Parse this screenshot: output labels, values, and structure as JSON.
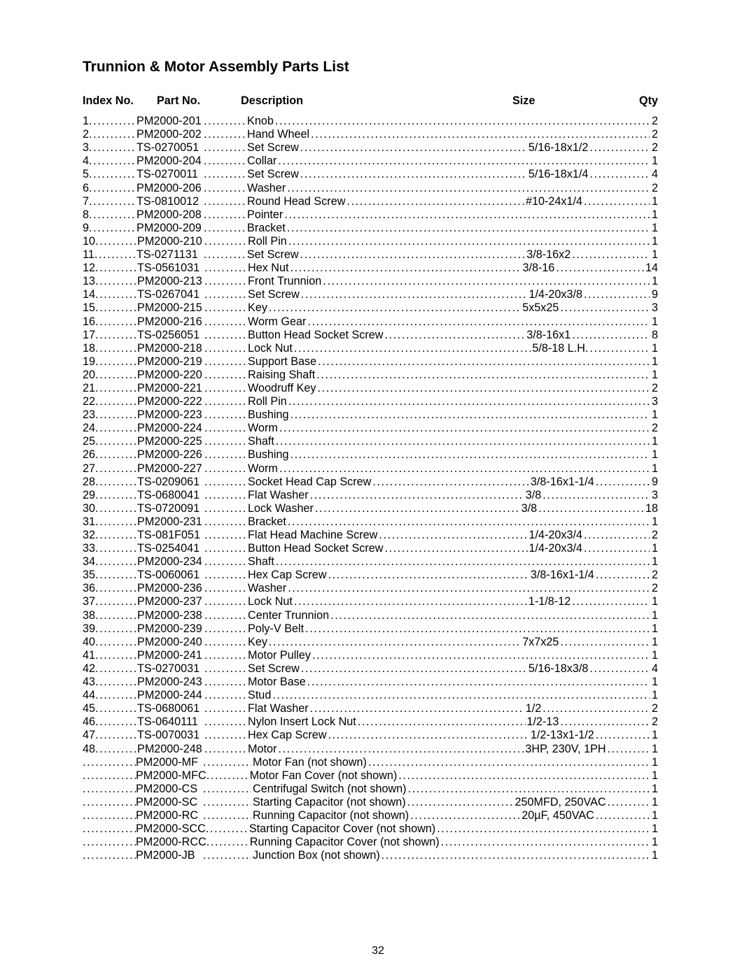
{
  "page_number": "32",
  "title": "Trunnion & Motor Assembly Parts List",
  "headers": {
    "index": "Index No.",
    "part": "Part No.",
    "description": "Description",
    "size": "Size",
    "qty": "Qty"
  },
  "rows": [
    {
      "idx": "1",
      "part": "PM2000-201",
      "desc": "Knob",
      "size": "",
      "qty": "2"
    },
    {
      "idx": "2",
      "part": "PM2000-202",
      "desc": "Hand Wheel",
      "size": "",
      "qty": "2"
    },
    {
      "idx": "3",
      "part": "TS-0270051",
      "desc": "Set Screw",
      "size": "5/16-18x1/2",
      "qty": "2"
    },
    {
      "idx": "4",
      "part": "PM2000-204",
      "desc": "Collar",
      "size": "",
      "qty": "1"
    },
    {
      "idx": "5",
      "part": "TS-0270011",
      "desc": "Set Screw",
      "size": "5/16-18x1/4",
      "qty": "4"
    },
    {
      "idx": "6",
      "part": "PM2000-206",
      "desc": "Washer",
      "size": "",
      "qty": "2"
    },
    {
      "idx": "7",
      "part": "TS-0810012",
      "desc": "Round Head Screw",
      "size": "#10-24x1/4",
      "qty": "1"
    },
    {
      "idx": "8",
      "part": "PM2000-208",
      "desc": "Pointer",
      "size": "",
      "qty": "1"
    },
    {
      "idx": "9",
      "part": "PM2000-209",
      "desc": "Bracket",
      "size": "",
      "qty": "1"
    },
    {
      "idx": "10",
      "part": "PM2000-210",
      "desc": "Roll Pin",
      "size": "",
      "qty": "1"
    },
    {
      "idx": "11",
      "part": "TS-0271131",
      "desc": "Set Screw",
      "size": "3/8-16x2",
      "qty": "1"
    },
    {
      "idx": "12",
      "part": "TS-0561031",
      "desc": "Hex Nut",
      "size": "3/8-16",
      "qty": "14"
    },
    {
      "idx": "13",
      "part": "PM2000-213",
      "desc": "Front Trunnion",
      "size": "",
      "qty": "1"
    },
    {
      "idx": "14",
      "part": "TS-0267041",
      "desc": "Set Screw",
      "size": "1/4-20x3/8",
      "qty": "9"
    },
    {
      "idx": "15",
      "part": "PM2000-215",
      "desc": "Key",
      "size": "5x5x25",
      "qty": "3"
    },
    {
      "idx": "16",
      "part": "PM2000-216",
      "desc": "Worm Gear",
      "size": "",
      "qty": "1"
    },
    {
      "idx": "17",
      "part": "TS-0256051",
      "desc": "Button Head Socket Screw",
      "size": "3/8-16x1",
      "qty": "8"
    },
    {
      "idx": "18",
      "part": "PM2000-218",
      "desc": "Lock Nut",
      "size": "5/8-18 L.H.",
      "qty": "1"
    },
    {
      "idx": "19",
      "part": "PM2000-219",
      "desc": "Support Base",
      "size": "",
      "qty": "1"
    },
    {
      "idx": "20",
      "part": "PM2000-220",
      "desc": "Raising Shaft",
      "size": "",
      "qty": "1"
    },
    {
      "idx": "21",
      "part": "PM2000-221",
      "desc": "Woodruff Key",
      "size": "",
      "qty": "2"
    },
    {
      "idx": "22",
      "part": "PM2000-222",
      "desc": "Roll Pin",
      "size": "",
      "qty": "3"
    },
    {
      "idx": "23",
      "part": "PM2000-223",
      "desc": "Bushing",
      "size": "",
      "qty": "1"
    },
    {
      "idx": "24",
      "part": "PM2000-224",
      "desc": "Worm",
      "size": "",
      "qty": "2"
    },
    {
      "idx": "25",
      "part": "PM2000-225",
      "desc": "Shaft",
      "size": "",
      "qty": "1"
    },
    {
      "idx": "26",
      "part": "PM2000-226",
      "desc": "Bushing",
      "size": "",
      "qty": "1"
    },
    {
      "idx": "27",
      "part": "PM2000-227",
      "desc": "Worm",
      "size": "",
      "qty": "1"
    },
    {
      "idx": "28",
      "part": "TS-0209061",
      "desc": "Socket Head Cap Screw",
      "size": "3/8-16x1-1/4",
      "qty": "9"
    },
    {
      "idx": "29",
      "part": "TS-0680041",
      "desc": "Flat Washer",
      "size": "3/8",
      "qty": "3"
    },
    {
      "idx": "30",
      "part": "TS-0720091",
      "desc": "Lock Washer",
      "size": "3/8",
      "qty": "18"
    },
    {
      "idx": "31",
      "part": "PM2000-231",
      "desc": "Bracket",
      "size": "",
      "qty": "1"
    },
    {
      "idx": "32",
      "part": "TS-081F051",
      "desc": "Flat Head Machine Screw",
      "size": "1/4-20x3/4",
      "qty": "2"
    },
    {
      "idx": "33",
      "part": "TS-0254041",
      "desc": "Button Head Socket Screw",
      "size": "1/4-20x3/4",
      "qty": "1"
    },
    {
      "idx": "34",
      "part": "PM2000-234",
      "desc": "Shaft",
      "size": "",
      "qty": "1"
    },
    {
      "idx": "35",
      "part": "TS-0060061",
      "desc": "Hex Cap Screw",
      "size": "3/8-16x1-1/4",
      "qty": "2"
    },
    {
      "idx": "36",
      "part": "PM2000-236",
      "desc": "Washer",
      "size": "",
      "qty": "2"
    },
    {
      "idx": "37",
      "part": "PM2000-237",
      "desc": "Lock Nut",
      "size": "1-1/8-12",
      "qty": "1"
    },
    {
      "idx": "38",
      "part": "PM2000-238",
      "desc": "Center Trunnion",
      "size": "",
      "qty": "1"
    },
    {
      "idx": "39",
      "part": "PM2000-239",
      "desc": "Poly-V Belt",
      "size": "",
      "qty": "1"
    },
    {
      "idx": "40",
      "part": "PM2000-240",
      "desc": "Key",
      "size": "7x7x25",
      "qty": "1"
    },
    {
      "idx": "41",
      "part": "PM2000-241",
      "desc": "Motor Pulley",
      "size": "",
      "qty": "1"
    },
    {
      "idx": "42",
      "part": "TS-0270031",
      "desc": "Set Screw",
      "size": "5/16-18x3/8",
      "qty": "4"
    },
    {
      "idx": "43",
      "part": "PM2000-243",
      "desc": "Motor Base",
      "size": "",
      "qty": "1"
    },
    {
      "idx": "44",
      "part": "PM2000-244",
      "desc": "Stud",
      "size": "",
      "qty": "1"
    },
    {
      "idx": "45",
      "part": "TS-0680061",
      "desc": "Flat Washer",
      "size": "1/2",
      "qty": "2"
    },
    {
      "idx": "46",
      "part": "TS-0640111",
      "desc": "Nylon Insert Lock Nut",
      "size": "1/2-13",
      "qty": "2"
    },
    {
      "idx": "47",
      "part": "TS-0070031",
      "desc": "Hex Cap Screw",
      "size": "1/2-13x1-1/2",
      "qty": "1"
    },
    {
      "idx": "48",
      "part": "PM2000-248",
      "desc": "Motor",
      "size": "3HP, 230V, 1PH",
      "qty": "1"
    },
    {
      "idx": "",
      "part": "PM2000-MF",
      "desc": "Motor Fan (not shown)",
      "size": "",
      "qty": "1"
    },
    {
      "idx": "",
      "part": "PM2000-MFC",
      "desc": "Motor Fan Cover (not shown)",
      "size": "",
      "qty": "1"
    },
    {
      "idx": "",
      "part": "PM2000-CS",
      "desc": "Centrifugal Switch (not shown)",
      "size": "",
      "qty": "1"
    },
    {
      "idx": "",
      "part": "PM2000-SC",
      "desc": "Starting Capacitor (not shown)",
      "size": "250MFD, 250VAC",
      "qty": "1"
    },
    {
      "idx": "",
      "part": "PM2000-RC",
      "desc": "Running Capacitor (not shown)",
      "size": "20µF, 450VAC",
      "qty": "1"
    },
    {
      "idx": "",
      "part": "PM2000-SCC",
      "desc": "Starting Capacitor Cover (not shown)",
      "size": "",
      "qty": "1"
    },
    {
      "idx": "",
      "part": "PM2000-RCC",
      "desc": "Running Capacitor Cover (not shown)",
      "size": "",
      "qty": "1"
    },
    {
      "idx": "",
      "part": "PM2000-JB",
      "desc": "Junction Box (not shown)",
      "size": "",
      "qty": "1"
    }
  ]
}
